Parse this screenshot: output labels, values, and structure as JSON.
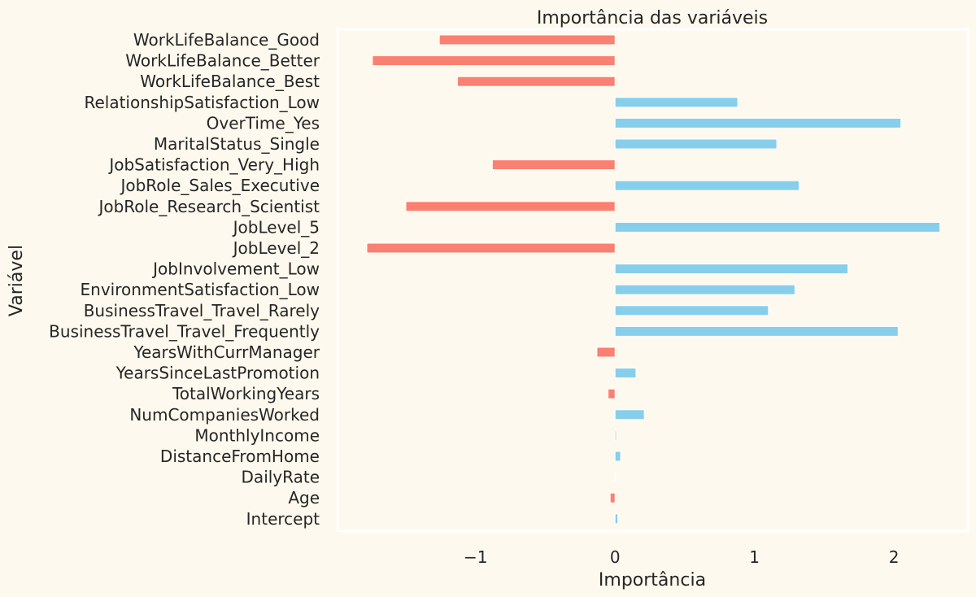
{
  "chart_data": {
    "type": "bar",
    "orientation": "horizontal",
    "title": "Importância das variáveis",
    "xlabel": "Importância",
    "ylabel": "Variável",
    "xlim": [
      -1.99,
      2.53
    ],
    "xticks": [
      {
        "value": -1,
        "label": "−1"
      },
      {
        "value": 0,
        "label": "0"
      },
      {
        "value": 1,
        "label": "1"
      },
      {
        "value": 2,
        "label": "2"
      }
    ],
    "grid": false,
    "legend": "none",
    "colors": {
      "positive": "#87ceeb",
      "negative": "#fa8072",
      "background": "#fdf9ee",
      "frame": "#ffffff"
    },
    "categories": [
      "WorkLifeBalance_Good",
      "WorkLifeBalance_Better",
      "WorkLifeBalance_Best",
      "RelationshipSatisfaction_Low",
      "OverTime_Yes",
      "MaritalStatus_Single",
      "JobSatisfaction_Very_High",
      "JobRole_Sales_Executive",
      "JobRole_Research_Scientist",
      "JobLevel_5",
      "JobLevel_2",
      "JobInvolvement_Low",
      "EnvironmentSatisfaction_Low",
      "BusinessTravel_Travel_Rarely",
      "BusinessTravel_Travel_Frequently",
      "YearsWithCurrManager",
      "YearsSinceLastPromotion",
      "TotalWorkingYears",
      "NumCompaniesWorked",
      "MonthlyIncome",
      "DistanceFromHome",
      "DailyRate",
      "Age",
      "Intercept"
    ],
    "values": [
      -1.26,
      -1.74,
      -1.13,
      0.88,
      2.05,
      1.16,
      -0.88,
      1.32,
      -1.5,
      2.33,
      -1.78,
      1.67,
      1.29,
      1.1,
      2.03,
      -0.13,
      0.15,
      -0.05,
      0.21,
      0.01,
      0.04,
      0.005,
      -0.035,
      0.02
    ]
  }
}
